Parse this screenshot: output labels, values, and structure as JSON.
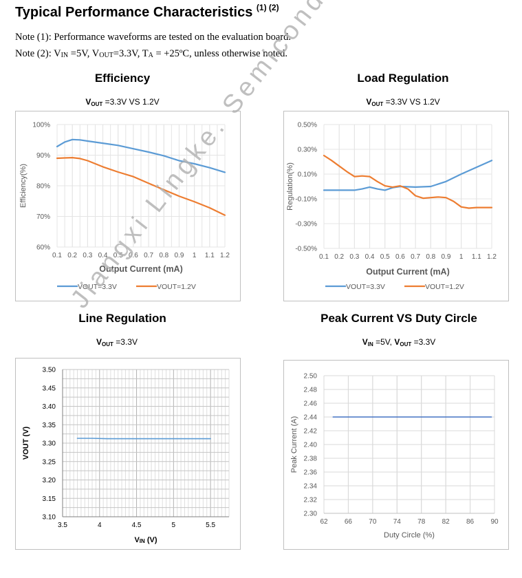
{
  "header": {
    "title": "Typical Performance Characteristics",
    "title_sup": "(1) (2)",
    "note1": "Note (1): Performance waveforms are tested on the evaluation board.",
    "note2_prefix": "Note (2): V",
    "note2_vin_sub": "IN",
    "note2_mid1": " =5V, V",
    "note2_vout_sub": "OUT",
    "note2_mid2": "=3.3V, T",
    "note2_ta_sub": "A",
    "note2_suffix": " = +25ºC, unless otherwise noted."
  },
  "watermark": "Jiangxi Lingke. Semiconductor",
  "colors": {
    "blue": "#5b9bd5",
    "orange": "#ed7d31",
    "grid": "#d9d9d9",
    "axis_text": "#595959"
  },
  "chart_data": [
    {
      "id": "efficiency",
      "type": "line",
      "title": "Efficiency",
      "subtitle_v": "V",
      "subtitle_sub": "OUT",
      "subtitle_rest": " =3.3V VS 1.2V",
      "xlabel": "Output Current (mA)",
      "ylabel": "Efficiency(%)",
      "xlim": [
        0.1,
        1.2
      ],
      "ylim": [
        60,
        100
      ],
      "xticks": [
        "0.1",
        "0.2",
        "0.3",
        "0.4",
        "0.5",
        "0.6",
        "0.7",
        "0.8",
        "0.9",
        "1",
        "1.1",
        "1.2"
      ],
      "yticks": [
        "60%",
        "70%",
        "80%",
        "90%",
        "100%"
      ],
      "legend": "bottom",
      "series": [
        {
          "name": "VOUT=3.3V",
          "color": "#5b9bd5",
          "x": [
            0.1,
            0.15,
            0.2,
            0.25,
            0.3,
            0.4,
            0.5,
            0.6,
            0.7,
            0.8,
            0.9,
            1.0,
            1.1,
            1.2
          ],
          "y": [
            92.8,
            94.3,
            95.1,
            95.0,
            94.6,
            93.9,
            93.2,
            92.1,
            91.0,
            89.8,
            88.2,
            87.2,
            85.9,
            84.4
          ]
        },
        {
          "name": "VOUT=1.2V",
          "color": "#ed7d31",
          "x": [
            0.1,
            0.15,
            0.2,
            0.25,
            0.3,
            0.4,
            0.5,
            0.6,
            0.7,
            0.8,
            0.9,
            1.0,
            1.1,
            1.2
          ],
          "y": [
            89.0,
            89.1,
            89.2,
            88.9,
            88.2,
            86.2,
            84.5,
            83.0,
            80.8,
            78.7,
            76.6,
            74.8,
            72.8,
            70.4
          ]
        }
      ]
    },
    {
      "id": "load-regulation",
      "type": "line",
      "title": "Load Regulation",
      "subtitle_v": "V",
      "subtitle_sub": "OUT",
      "subtitle_rest": " =3.3V VS 1.2V",
      "xlabel": "Output Current (mA)",
      "ylabel": "Regulation(%)",
      "xlim": [
        0.1,
        1.2
      ],
      "ylim": [
        -0.5,
        0.5
      ],
      "xticks": [
        "0.1",
        "0.2",
        "0.3",
        "0.4",
        "0.5",
        "0.6",
        "0.7",
        "0.8",
        "0.9",
        "1",
        "1.1",
        "1.2"
      ],
      "yticks": [
        "-0.50%",
        "-0.30%",
        "-0.10%",
        "0.10%",
        "0.30%",
        "0.50%"
      ],
      "legend": "bottom",
      "series": [
        {
          "name": "VOUT=3.3V",
          "color": "#5b9bd5",
          "x": [
            0.1,
            0.2,
            0.3,
            0.35,
            0.4,
            0.45,
            0.5,
            0.55,
            0.6,
            0.7,
            0.8,
            0.9,
            1.0,
            1.1,
            1.2
          ],
          "y": [
            -0.03,
            -0.03,
            -0.03,
            -0.02,
            -0.005,
            -0.02,
            -0.03,
            -0.01,
            0.0,
            -0.005,
            0.0,
            0.04,
            0.1,
            0.155,
            0.21
          ]
        },
        {
          "name": "VOUT=1.2V",
          "color": "#ed7d31",
          "x": [
            0.1,
            0.15,
            0.2,
            0.25,
            0.3,
            0.35,
            0.4,
            0.45,
            0.5,
            0.55,
            0.6,
            0.65,
            0.7,
            0.75,
            0.8,
            0.85,
            0.9,
            0.95,
            1.0,
            1.05,
            1.1,
            1.2
          ],
          "y": [
            0.25,
            0.21,
            0.165,
            0.12,
            0.08,
            0.085,
            0.08,
            0.04,
            0.005,
            -0.005,
            0.005,
            -0.02,
            -0.075,
            -0.095,
            -0.09,
            -0.085,
            -0.09,
            -0.12,
            -0.165,
            -0.175,
            -0.17,
            -0.17
          ]
        }
      ]
    },
    {
      "id": "line-regulation",
      "type": "line",
      "title": "Line Regulation",
      "subtitle_v": "V",
      "subtitle_sub": "OUT",
      "subtitle_rest": " =3.3V",
      "xlabel_v": "V",
      "xlabel_sub": "IN",
      "xlabel_rest": " (V)",
      "ylabel": "VOUT (V)",
      "xlim": [
        3.5,
        5.75
      ],
      "ylim": [
        3.1,
        3.5
      ],
      "xticks": [
        "3.5",
        "4",
        "4.5",
        "5",
        "5.5"
      ],
      "xtick_values": [
        3.5,
        4,
        4.5,
        5,
        5.5
      ],
      "yticks": [
        "3.10",
        "3.15",
        "3.20",
        "3.25",
        "3.30",
        "3.35",
        "3.40",
        "3.45",
        "3.50"
      ],
      "series": [
        {
          "name": "",
          "color": "#5b9bd5",
          "x": [
            3.7,
            3.9,
            4.1,
            4.3,
            4.5,
            4.7,
            4.9,
            5.1,
            5.3,
            5.5
          ],
          "y": [
            3.313,
            3.313,
            3.312,
            3.312,
            3.312,
            3.312,
            3.312,
            3.312,
            3.312,
            3.312
          ]
        }
      ]
    },
    {
      "id": "peak-current",
      "type": "line",
      "title": "Peak Current VS Duty Circle",
      "subtitle_v1": "V",
      "subtitle_sub1": "IN",
      "subtitle_mid": " =5V, ",
      "subtitle_v2": "V",
      "subtitle_sub2": "OUT",
      "subtitle_rest": " =3.3V",
      "xlabel": "Duty Circle (%)",
      "ylabel": "Peak Current (A)",
      "xlim": [
        62,
        90
      ],
      "ylim": [
        2.3,
        2.5
      ],
      "xticks": [
        "62",
        "66",
        "70",
        "74",
        "78",
        "82",
        "86",
        "90"
      ],
      "yticks": [
        "2.30",
        "2.32",
        "2.34",
        "2.36",
        "2.38",
        "2.40",
        "2.42",
        "2.44",
        "2.46",
        "2.48",
        "2.50"
      ],
      "series": [
        {
          "name": "",
          "color": "#4472c4",
          "x": [
            63.5,
            89.5
          ],
          "y": [
            2.44,
            2.44
          ]
        }
      ]
    }
  ]
}
